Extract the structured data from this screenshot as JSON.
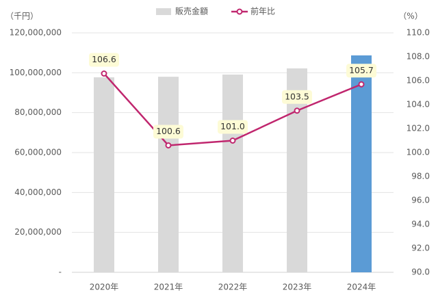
{
  "chart_data": {
    "type": "bar-line",
    "y_unit_label": "（千円）",
    "y2_unit_label": "（%）",
    "categories": [
      "2020年",
      "2021年",
      "2022年",
      "2023年",
      "2024年"
    ],
    "series": [
      {
        "name": "販売金額",
        "type": "bar",
        "color": "#d9d9d9",
        "colors": [
          "#d9d9d9",
          "#d9d9d9",
          "#d9d9d9",
          "#d9d9d9",
          "#5b9bd5"
        ],
        "values": [
          97700000,
          98000000,
          99100000,
          102200000,
          108700000
        ]
      },
      {
        "name": "前年比",
        "type": "line",
        "axis": "y2",
        "color": "#c0266e",
        "values": [
          106.6,
          100.6,
          101.0,
          103.5,
          105.7
        ],
        "value_labels": [
          "106.6",
          "100.6",
          "101.0",
          "103.5",
          "105.7"
        ]
      }
    ],
    "ylim": [
      0,
      120000000
    ],
    "yticks": [
      {
        "value": 0,
        "label": "-"
      },
      {
        "value": 20000000,
        "label": "20,000,000"
      },
      {
        "value": 40000000,
        "label": "40,000,000"
      },
      {
        "value": 60000000,
        "label": "60,000,000"
      },
      {
        "value": 80000000,
        "label": "80,000,000"
      },
      {
        "value": 100000000,
        "label": "100,000,000"
      },
      {
        "value": 120000000,
        "label": "120,000,000"
      }
    ],
    "y2lim": [
      90,
      110
    ],
    "y2ticks": [
      {
        "value": 90,
        "label": "90.0"
      },
      {
        "value": 92,
        "label": "92.0"
      },
      {
        "value": 94,
        "label": "94.0"
      },
      {
        "value": 96,
        "label": "96.0"
      },
      {
        "value": 98,
        "label": "98.0"
      },
      {
        "value": 100,
        "label": "100.0"
      },
      {
        "value": 102,
        "label": "102.0"
      },
      {
        "value": 104,
        "label": "104.0"
      },
      {
        "value": 106,
        "label": "106.0"
      },
      {
        "value": 108,
        "label": "108.0"
      },
      {
        "value": 110,
        "label": "110.0"
      }
    ],
    "grid": true
  }
}
